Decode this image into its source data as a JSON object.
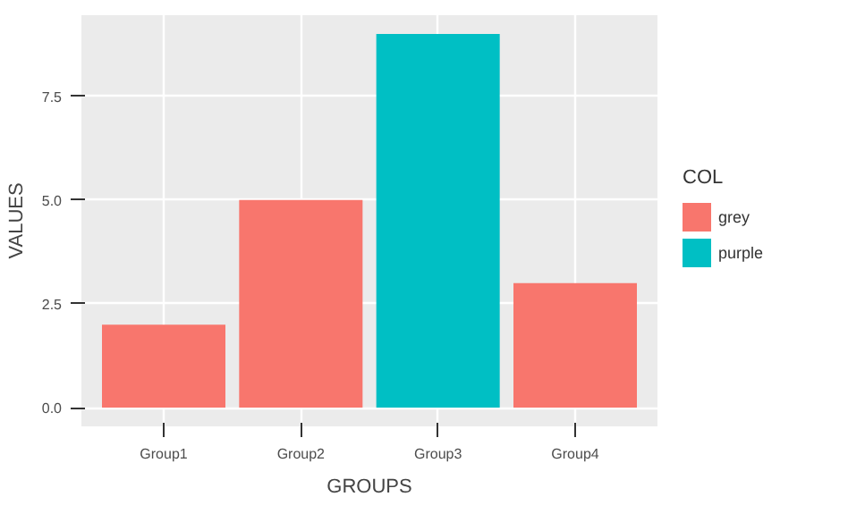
{
  "chart_data": {
    "type": "bar",
    "xlabel": "GROUPS",
    "ylabel": "VALUES",
    "legend_title": "COL",
    "categories": [
      "Group1",
      "Group2",
      "Group3",
      "Group4"
    ],
    "series": [
      {
        "name": "grey",
        "color": "#f8766d",
        "values": [
          2,
          5,
          null,
          3
        ]
      },
      {
        "name": "purple",
        "color": "#00bfc4",
        "values": [
          null,
          null,
          9,
          null
        ]
      }
    ],
    "ylim": [
      -0.45,
      9.45
    ],
    "yticks": [
      {
        "value": 0,
        "label": "0.0"
      },
      {
        "value": 2.5,
        "label": "2.5"
      },
      {
        "value": 5,
        "label": "5.0"
      },
      {
        "value": 7.5,
        "label": "7.5"
      }
    ],
    "grid": true,
    "legend": "right"
  }
}
